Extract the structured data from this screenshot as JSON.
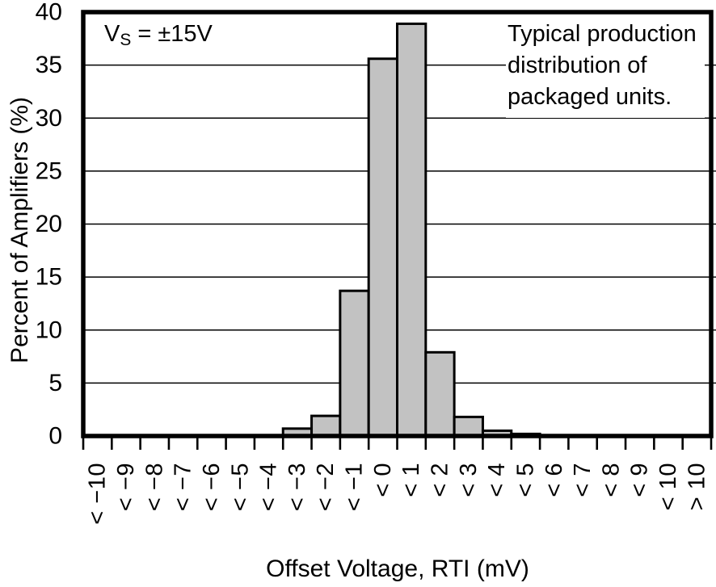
{
  "chart_data": {
    "type": "bar",
    "subtype": "histogram",
    "title": "",
    "xlabel": "Offset Voltage, RTI (mV)",
    "ylabel": "Percent of Amplifiers (%)",
    "ylim": [
      0,
      40
    ],
    "yticks": [
      0,
      5,
      10,
      15,
      20,
      25,
      30,
      35,
      40
    ],
    "grid": "horizontal",
    "legend": "none",
    "categories": [
      "< −10",
      "< −9",
      "< −8",
      "< −7",
      "< −6",
      "< −5",
      "< −4",
      "< −3",
      "< −2",
      "< −1",
      "< 0",
      "< 1",
      "< 2",
      "< 3",
      "< 4",
      "< 5",
      "< 6",
      "< 7",
      "< 8",
      "< 9",
      "< 10",
      "> 10"
    ],
    "values": [
      0,
      0,
      0,
      0,
      0,
      0,
      0,
      0.7,
      1.9,
      13.7,
      35.6,
      38.9,
      7.9,
      1.8,
      0.5,
      0.2,
      0,
      0,
      0,
      0,
      0,
      0
    ],
    "colors": {
      "bar_fill": "#c2c2c2",
      "bar_stroke": "#000000",
      "axis": "#000000",
      "grid": "#000000",
      "text": "#000000",
      "background": "#ffffff"
    },
    "annotations": {
      "supply": {
        "base": "V",
        "sub": "S",
        "rest": " = ±15V"
      },
      "note_lines": [
        "Typical production",
        "distribution of",
        "packaged units."
      ]
    }
  }
}
